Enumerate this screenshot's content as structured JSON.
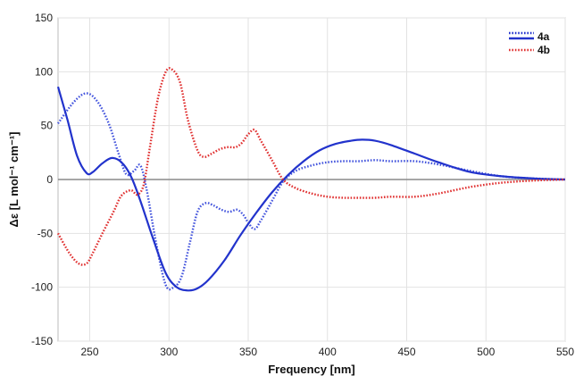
{
  "chart_data": {
    "type": "line",
    "xlabel": "Frequency [nm]",
    "ylabel": "Δε [L mol⁻¹ cm⁻¹]",
    "xlim": [
      230,
      550
    ],
    "ylim": [
      -150,
      150
    ],
    "xticks": [
      250,
      300,
      350,
      400,
      450,
      500,
      550
    ],
    "yticks": [
      -150,
      -100,
      -50,
      0,
      50,
      100,
      150
    ],
    "grid": true,
    "legend_position": "top-right",
    "legend": [
      {
        "label": "4a",
        "color": "#2233cc"
      },
      {
        "label": "4b",
        "color": "#e03030"
      }
    ],
    "series": [
      {
        "name": "4a",
        "style": "dotted",
        "color": "#4455dd",
        "x": [
          230,
          240,
          248,
          255,
          262,
          268,
          273,
          278,
          282,
          286,
          292,
          298,
          303,
          308,
          313,
          318,
          323,
          328,
          333,
          338,
          343,
          347,
          350,
          354,
          358,
          365,
          372,
          380,
          390,
          400,
          410,
          420,
          430,
          440,
          455,
          470,
          490,
          510,
          530,
          550
        ],
        "y": [
          52,
          72,
          80,
          72,
          52,
          25,
          5,
          8,
          13,
          -10,
          -60,
          -98,
          -100,
          -90,
          -60,
          -30,
          -22,
          -24,
          -28,
          -30,
          -28,
          -33,
          -40,
          -46,
          -38,
          -20,
          -2,
          8,
          13,
          16,
          17,
          17,
          18,
          17,
          17,
          14,
          8,
          3,
          1,
          0
        ]
      },
      {
        "name": "4a",
        "style": "solid",
        "color": "#2233cc",
        "x": [
          230,
          236,
          242,
          248,
          252,
          258,
          264,
          270,
          276,
          282,
          290,
          298,
          305,
          312,
          318,
          325,
          335,
          345,
          355,
          365,
          375,
          385,
          395,
          405,
          415,
          422,
          430,
          440,
          455,
          470,
          490,
          510,
          530,
          550
        ],
        "y": [
          86,
          55,
          22,
          6,
          7,
          15,
          20,
          16,
          3,
          -20,
          -55,
          -87,
          -100,
          -103,
          -101,
          -93,
          -75,
          -52,
          -31,
          -12,
          4,
          17,
          27,
          33,
          36,
          37,
          36,
          32,
          24,
          16,
          7,
          3,
          1,
          0
        ]
      },
      {
        "name": "4b",
        "style": "dotted",
        "color": "#e03030",
        "x": [
          230,
          237,
          243,
          248,
          252,
          258,
          265,
          270,
          276,
          280,
          284,
          288,
          293,
          298,
          302,
          307,
          312,
          318,
          322,
          327,
          332,
          337,
          342,
          346,
          350,
          354,
          358,
          365,
          372,
          380,
          390,
          400,
          410,
          420,
          430,
          440,
          455,
          470,
          490,
          510,
          530,
          550
        ],
        "y": [
          -50,
          -68,
          -78,
          -78,
          -68,
          -50,
          -30,
          -15,
          -10,
          -14,
          -5,
          30,
          75,
          100,
          102,
          90,
          55,
          27,
          21,
          24,
          28,
          30,
          30,
          34,
          42,
          46,
          36,
          18,
          0,
          -8,
          -13,
          -16,
          -17,
          -17,
          -17,
          -16,
          -16,
          -13,
          -7,
          -3,
          -1,
          0
        ]
      }
    ]
  }
}
